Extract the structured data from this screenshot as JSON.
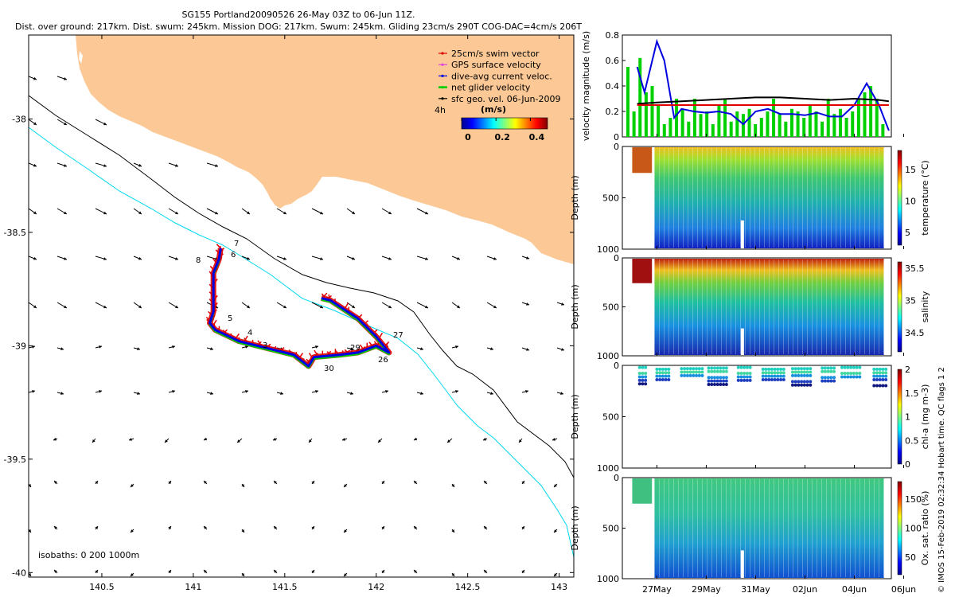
{
  "header": {
    "title": "SG155 Portland20090526 26-May 03Z to 06-Jun 11Z.",
    "subtitle": "Dist. over ground: 217km. Dist. swum: 245km. Mission DOG: 217km. Swum: 245km. Gliding 23cm/s 290T COG-DAC=4cm/s 206T"
  },
  "side_note": "© IMOS 15-Feb-2019 02:32:34 Hobart time. QC flags 1  2",
  "colors": {
    "land": "#fbc896",
    "isobath_200": "#00d8f0",
    "isobath_1000": "#000000",
    "swim_vector": "#e00000",
    "gps_velocity": "#e040e0",
    "dive_avg_current": "#0000e0",
    "net_velocity": "#00d000",
    "sfc_geo_vel": "#000000"
  },
  "map": {
    "legend": [
      {
        "key": "swim",
        "label": "25cm/s swim vector"
      },
      {
        "key": "gps",
        "label": "GPS surface velocity"
      },
      {
        "key": "dac",
        "label": "dive-avg current veloc."
      },
      {
        "key": "net",
        "label": "net glider velocity"
      },
      {
        "key": "sfc",
        "label": "sfc geo. vel. 06-Jun-2009"
      }
    ],
    "colorbar": {
      "label": "(m/s)",
      "ticks": [
        "0",
        "0.2",
        "0.4"
      ],
      "range": [
        0,
        0.5
      ]
    },
    "lead_label": "4h",
    "isobath_note": "isobaths: 0   200   1000m",
    "dive_labels": [
      "5",
      "4",
      "3",
      "6",
      "7",
      "8",
      "26",
      "27",
      "29",
      "30"
    ]
  },
  "chart_data": [
    {
      "type": "map",
      "xlim": [
        140.1,
        143.08
      ],
      "ylim": [
        -40.02,
        -37.63
      ],
      "x_ticks": [
        "140.5",
        "141",
        "141.5",
        "142",
        "142.5",
        "143"
      ],
      "y_ticks": [
        "-38",
        "-38.5",
        "-39",
        "-39.5",
        "-40"
      ],
      "track": [
        [
          141.15,
          -38.57
        ],
        [
          141.14,
          -38.62
        ],
        [
          141.11,
          -38.68
        ],
        [
          141.11,
          -38.78
        ],
        [
          141.11,
          -38.85
        ],
        [
          141.09,
          -38.9
        ],
        [
          141.12,
          -38.93
        ],
        [
          141.25,
          -38.98
        ],
        [
          141.4,
          -39.01
        ],
        [
          141.55,
          -39.04
        ],
        [
          141.63,
          -39.09
        ],
        [
          141.66,
          -39.05
        ],
        [
          141.8,
          -39.04
        ],
        [
          141.9,
          -39.03
        ],
        [
          142.0,
          -39.0
        ],
        [
          142.07,
          -39.03
        ],
        [
          142.0,
          -38.96
        ],
        [
          141.9,
          -38.88
        ],
        [
          141.75,
          -38.8
        ],
        [
          141.7,
          -38.79
        ]
      ]
    },
    {
      "type": "line",
      "ylabel": "velocity magnitude (m/s)",
      "ylim": [
        0,
        0.8
      ],
      "y_ticks": [
        "0",
        "0.2",
        "0.4",
        "0.6",
        "0.8"
      ],
      "x_ticks": [
        "27May",
        "29May",
        "31May",
        "02Jun",
        "04Jun",
        "06Jun"
      ],
      "series": [
        {
          "key": "dac",
          "x": [
            26.2,
            26.5,
            27.0,
            27.3,
            27.7,
            28.0,
            28.5,
            29.0,
            29.5,
            30.0,
            30.5,
            31.0,
            31.5,
            32.0,
            32.5,
            33.0,
            33.5,
            34.0,
            34.5,
            35.0,
            35.5,
            36.0,
            36.4
          ],
          "values": [
            0.55,
            0.35,
            0.75,
            0.6,
            0.15,
            0.22,
            0.2,
            0.19,
            0.2,
            0.18,
            0.1,
            0.2,
            0.22,
            0.18,
            0.18,
            0.17,
            0.19,
            0.16,
            0.16,
            0.25,
            0.42,
            0.25,
            0.05
          ]
        },
        {
          "key": "sfc",
          "x": [
            26.2,
            27.0,
            28.0,
            29.0,
            30.0,
            31.0,
            32.0,
            33.0,
            34.0,
            35.0,
            36.0,
            36.4
          ],
          "values": [
            0.26,
            0.27,
            0.28,
            0.29,
            0.3,
            0.31,
            0.31,
            0.3,
            0.29,
            0.3,
            0.29,
            0.28
          ]
        },
        {
          "key": "swim",
          "x": [
            26.2,
            36.4
          ],
          "values": [
            0.25,
            0.25
          ]
        }
      ]
    },
    {
      "type": "heatmap",
      "ylabel": "Depth (m)",
      "colorbar_label": "temperature (°C)",
      "ylim": [
        0,
        1000
      ],
      "y_ticks": [
        "0",
        "500",
        "1000"
      ],
      "colorbar_range": [
        3,
        18
      ],
      "colorbar_ticks": [
        "5",
        "10",
        "15"
      ]
    },
    {
      "type": "heatmap",
      "ylabel": "Depth (m)",
      "colorbar_label": "salinity",
      "ylim": [
        0,
        1000
      ],
      "y_ticks": [
        "0",
        "500",
        "1000"
      ],
      "colorbar_range": [
        34.2,
        35.6
      ],
      "colorbar_ticks": [
        "34.5",
        "35",
        "35.5"
      ]
    },
    {
      "type": "heatmap",
      "ylabel": "Depth (m)",
      "colorbar_label": "chl-a (mg m-3)",
      "ylim": [
        0,
        1000
      ],
      "y_ticks": [
        "0",
        "500",
        "1000"
      ],
      "colorbar_range": [
        0,
        2
      ],
      "colorbar_ticks": [
        "0",
        "0.5",
        "1",
        "1.5",
        "2"
      ]
    },
    {
      "type": "heatmap",
      "ylabel": "Depth (m)",
      "colorbar_label": "Ox. sat. ratio (%)",
      "ylim": [
        0,
        1000
      ],
      "y_ticks": [
        "0",
        "500",
        "1000"
      ],
      "colorbar_range": [
        20,
        180
      ],
      "colorbar_ticks": [
        "50",
        "100",
        "150"
      ]
    }
  ]
}
